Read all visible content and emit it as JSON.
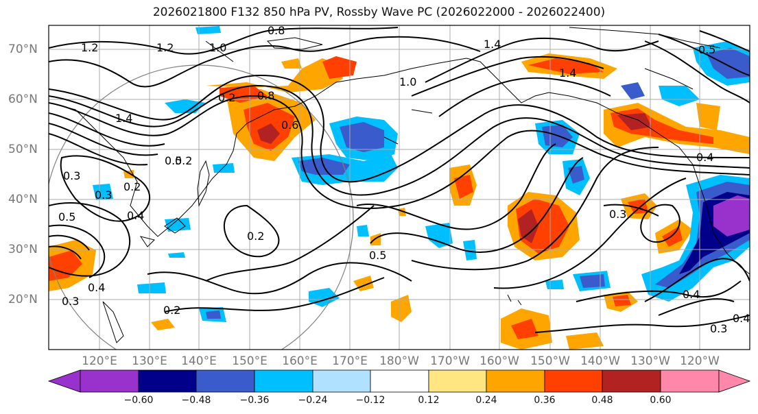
{
  "title": "2026021800 F132 850 hPa PV, Rossby Wave PC (2026022000 - 2026022400)",
  "lat_labels": [
    "70°N",
    "60°N",
    "50°N",
    "40°N",
    "30°N",
    "20°N"
  ],
  "lon_labels": [
    "120°E",
    "130°E",
    "140°E",
    "150°E",
    "160°E",
    "170°E",
    "180°W",
    "170°W",
    "160°W",
    "150°W",
    "140°W",
    "130°W",
    "120°W"
  ],
  "colorbar": {
    "ticks": [
      "−0.60",
      "−0.48",
      "−0.36",
      "−0.24",
      "−0.12",
      "0.12",
      "0.24",
      "0.36",
      "0.48",
      "0.60"
    ],
    "colors": [
      "#9932cc",
      "#00008b",
      "#3a5bcc",
      "#00bfff",
      "#b0e2ff",
      "#ffffff",
      "#ffe680",
      "#ffa500",
      "#ff4000",
      "#b22222",
      "#ff88aa"
    ]
  },
  "contour_labels": [
    "0.8",
    "1.2",
    "1.0",
    "1.2",
    "1.4",
    "0.2",
    "0.8",
    "0.6",
    "1.0",
    "1.4",
    "1.4",
    "0.5",
    "0.2",
    "0.3",
    "0.2",
    "0.5",
    "0.4",
    "0.3",
    "0.4",
    "0.5",
    "0.2",
    "0.5",
    "0.2",
    "0.3",
    "0.4",
    "0.4",
    "0.3",
    "0.3",
    "0.4"
  ]
}
